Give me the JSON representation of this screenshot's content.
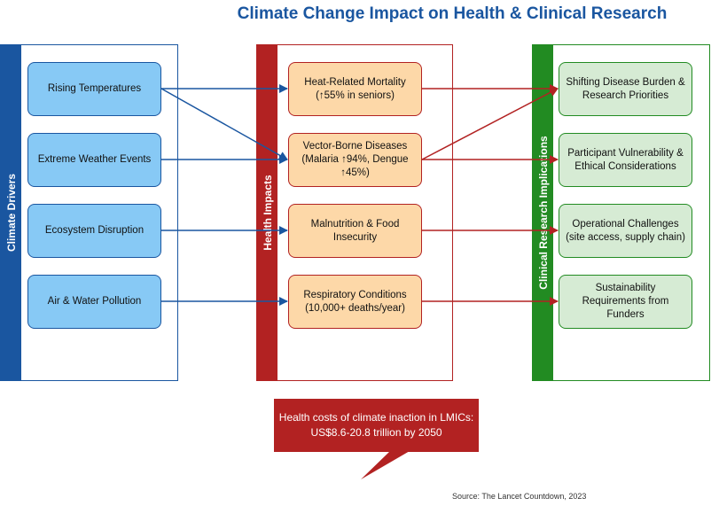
{
  "title": "Climate Change Impact on Health & Clinical Research",
  "lanes": {
    "drivers": "Climate Drivers",
    "impacts": "Health Impacts",
    "clinical": "Clinical Research Implications"
  },
  "drivers": [
    "Rising Temperatures",
    "Extreme Weather Events",
    "Ecosystem Disruption",
    "Air & Water Pollution"
  ],
  "impacts": [
    {
      "line1": "Heat-Related Mortality",
      "line2": "(↑55% in seniors)"
    },
    {
      "line1": "Vector-Borne Diseases",
      "line2": "(Malaria ↑94%, Dengue",
      "line3": "↑45%)"
    },
    {
      "line1": "Malnutrition & Food",
      "line2": "Insecurity"
    },
    {
      "line1": "Respiratory Conditions",
      "line2": "(10,000+ deaths/year)"
    }
  ],
  "clinical": [
    {
      "line1": "Shifting Disease Burden &",
      "line2": "Research Priorities"
    },
    {
      "line1": "Participant Vulnerability &",
      "line2": "Ethical Considerations"
    },
    {
      "line1": "Operational Challenges",
      "line2": "(site access, supply chain)"
    },
    {
      "line1": "Sustainability",
      "line2": "Requirements from",
      "line3": "Funders"
    }
  ],
  "callout": {
    "line1": "Health costs of climate inaction in LMICs:",
    "line2": "US$8.6-20.8 trillion by 2050"
  },
  "source": "Source: The Lancet Countdown, 2023",
  "colors": {
    "blue": "#1a56a0",
    "red": "#b22222",
    "green": "#228b22",
    "driver_fill": "#87c9f5",
    "impact_fill": "#fdd8a8",
    "clinical_fill": "#d6ebd4"
  }
}
